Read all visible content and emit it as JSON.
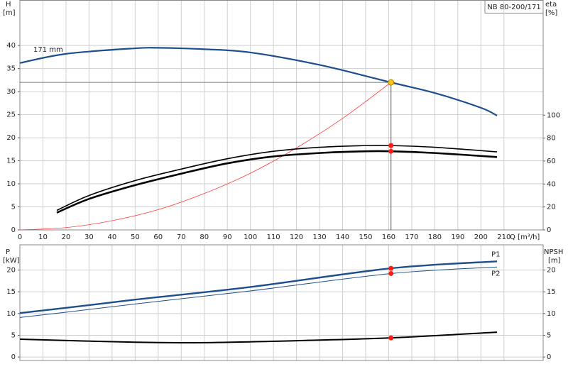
{
  "chart_data": [
    {
      "type": "line",
      "title": "NB 80-200/171",
      "ylabel": "H",
      "yunit": "[m]",
      "y2label": "eta",
      "y2unit": "[%]",
      "xlabel": "Q [m³/h]",
      "xlim": [
        0,
        227
      ],
      "xticks": [
        0,
        10,
        20,
        30,
        40,
        50,
        60,
        70,
        80,
        90,
        100,
        110,
        120,
        130,
        140,
        150,
        160,
        170,
        180,
        190,
        200,
        210
      ],
      "ylim": [
        0,
        49.8
      ],
      "yticks": [
        0,
        5,
        10,
        15,
        20,
        25,
        30,
        35,
        40
      ],
      "y2lim": [
        0,
        200
      ],
      "y2ticks": [
        0,
        20,
        40,
        60,
        80,
        100
      ],
      "grid": true,
      "series": [
        {
          "name": "171 mm",
          "color": "#1f4e8c",
          "width": 2.2,
          "x": [
            0,
            20,
            50,
            60,
            80,
            100,
            130,
            161,
            180,
            200,
            207
          ],
          "values": [
            36.2,
            38.2,
            39.4,
            39.5,
            39.2,
            38.5,
            35.8,
            32.0,
            29.7,
            26.5,
            24.8
          ]
        },
        {
          "color": "#ff3b3b",
          "width": 0.8,
          "x": [
            0,
            20,
            40,
            60,
            80,
            100,
            120,
            140,
            161
          ],
          "values": [
            0,
            0.5,
            2,
            4.4,
            7.9,
            12.3,
            17.8,
            24.2,
            32
          ]
        },
        {
          "color": "#000000",
          "width": 1.6,
          "axis": "y2",
          "x": [
            16,
            30,
            50,
            70,
            90,
            110,
            130,
            150,
            161,
            180,
            207
          ],
          "values": [
            17,
            30,
            43,
            53,
            62,
            68.5,
            72,
            73.5,
            73.5,
            72,
            68
          ]
        },
        {
          "color": "#000000",
          "width": 2.6,
          "axis": "y2",
          "x": [
            16,
            30,
            50,
            70,
            90,
            110,
            130,
            150,
            161,
            180,
            207
          ],
          "values": [
            15,
            27,
            39,
            49,
            58,
            64,
            67,
            68.5,
            68.5,
            67,
            63.5
          ]
        }
      ],
      "points": {
        "color": "#ff1a1a",
        "axis": "y2",
        "x": [
          161,
          161
        ],
        "values": [
          73.5,
          68.5
        ]
      },
      "duty_point": {
        "x": 161,
        "y": 32,
        "color": "#f5c518"
      }
    },
    {
      "type": "line",
      "ylabel": "P",
      "yunit": "[kW]",
      "y2label": "NPSH",
      "y2unit": "[m]",
      "xlim": [
        0,
        227
      ],
      "ylim": [
        -0.8,
        25.8
      ],
      "yticks": [
        0,
        5,
        10,
        15,
        20
      ],
      "y2lim": [
        -0.8,
        25.8
      ],
      "y2ticks": [
        0,
        5,
        10,
        15,
        20
      ],
      "grid": true,
      "series": [
        {
          "name": "P1",
          "color": "#1f4e8c",
          "width": 2.4,
          "x": [
            0,
            20,
            50,
            100,
            161,
            207
          ],
          "values": [
            10.1,
            11.3,
            13.2,
            16.1,
            20.4,
            22
          ]
        },
        {
          "name": "P2",
          "color": "#1f4e8c",
          "width": 1,
          "x": [
            0,
            20,
            50,
            100,
            161,
            207
          ],
          "values": [
            9.1,
            10.3,
            12.2,
            15.2,
            19.2,
            20.7
          ]
        },
        {
          "color": "#000000",
          "width": 2,
          "axis": "y2",
          "x": [
            0,
            50,
            80,
            120,
            161,
            207
          ],
          "values": [
            4.1,
            3.4,
            3.3,
            3.75,
            4.4,
            5.7
          ]
        }
      ],
      "points": {
        "color": "#ff1a1a",
        "x": [
          161,
          161
        ],
        "values": [
          20.4,
          19.2
        ]
      },
      "points2": {
        "color": "#ff1a1a",
        "axis": "y2",
        "x": [
          161
        ],
        "values": [
          4.4
        ]
      }
    }
  ]
}
